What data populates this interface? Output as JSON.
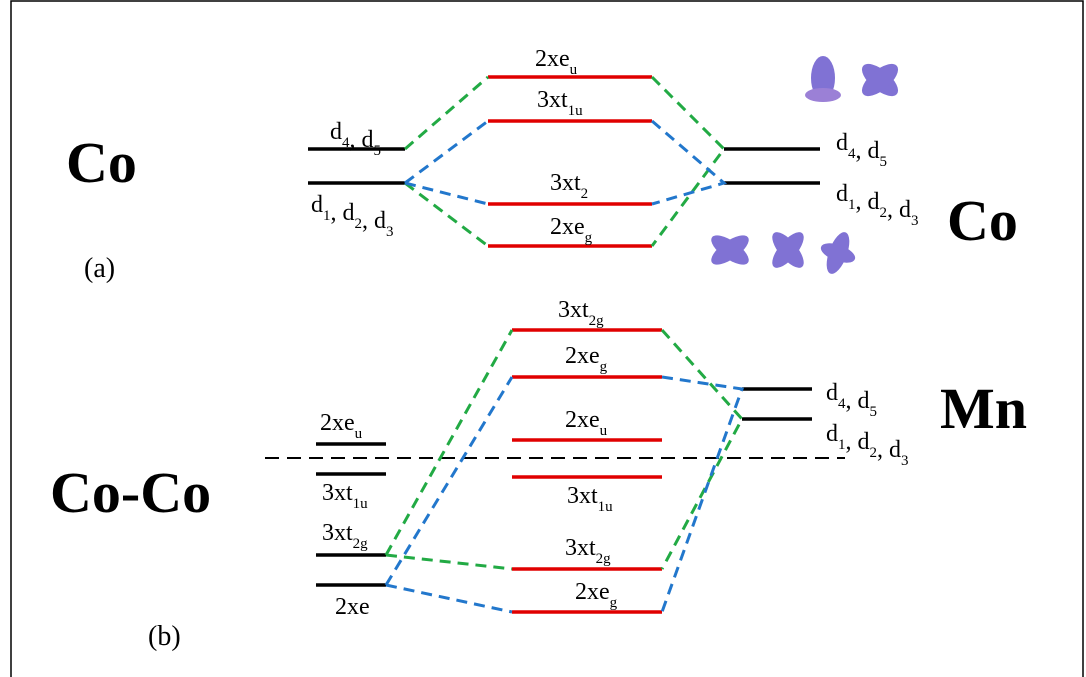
{
  "panel_a": {
    "left_element": "Co",
    "tag": "(a)",
    "right_element": "Co",
    "left_levels": [
      [
        [
          "d",
          "4"
        ],
        [
          ", d",
          "5"
        ]
      ],
      [
        [
          "d",
          "1"
        ],
        [
          ", d",
          "2"
        ],
        [
          ", d",
          "3"
        ]
      ]
    ],
    "molecular_levels": [
      [
        [
          "2xe",
          "u"
        ]
      ],
      [
        [
          "3xt",
          "1u"
        ]
      ],
      [
        [
          "3xt",
          "2"
        ]
      ],
      [
        [
          "2xe",
          "g"
        ]
      ]
    ],
    "right_levels": [
      [
        [
          "d",
          "4"
        ],
        [
          ", d",
          "5"
        ]
      ],
      [
        [
          "d",
          "1"
        ],
        [
          ", d",
          "2"
        ],
        [
          ", d",
          "3"
        ]
      ]
    ]
  },
  "panel_b": {
    "left_element": "Co-Co",
    "tag": "(b)",
    "right_element": "Mn",
    "left_levels": [
      [
        [
          "2xe",
          "u"
        ]
      ],
      [
        [
          "3xt",
          "1u"
        ]
      ],
      [
        [
          "3xt",
          "2g"
        ]
      ],
      [
        [
          "2xe"
        ]
      ]
    ],
    "molecular_levels": [
      [
        [
          "3xt",
          "2g"
        ]
      ],
      [
        [
          "2xe",
          "g"
        ]
      ],
      [
        [
          "2xe",
          "u"
        ]
      ],
      [
        [
          "3xt",
          "1u"
        ]
      ],
      [
        [
          "3xt",
          "2g"
        ]
      ],
      [
        [
          "2xe",
          "g"
        ]
      ]
    ],
    "right_levels": [
      [
        [
          "d",
          "4"
        ],
        [
          ", d",
          "5"
        ]
      ],
      [
        [
          "d",
          "1"
        ],
        [
          ", d",
          "2"
        ],
        [
          ", d",
          "3"
        ]
      ]
    ]
  }
}
